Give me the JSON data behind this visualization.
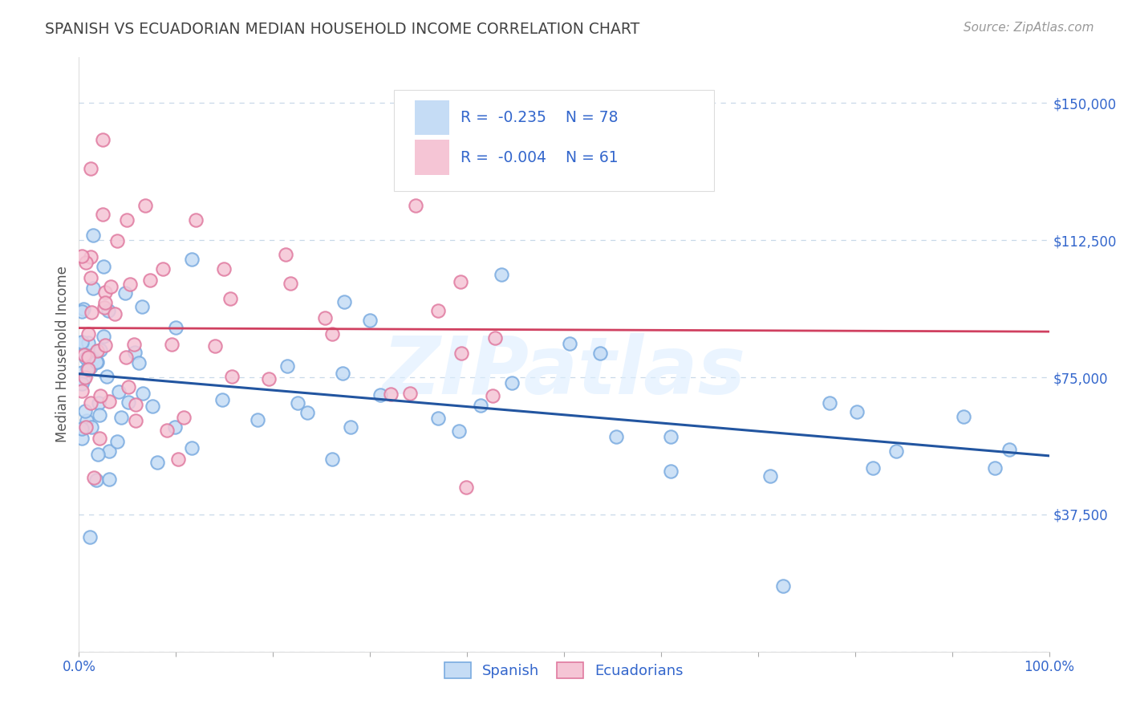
{
  "title": "SPANISH VS ECUADORIAN MEDIAN HOUSEHOLD INCOME CORRELATION CHART",
  "source": "Source: ZipAtlas.com",
  "ylabel": "Median Household Income",
  "xlim": [
    0,
    1.0
  ],
  "ylim": [
    0,
    162500
  ],
  "yticks": [
    0,
    37500,
    75000,
    112500,
    150000
  ],
  "ytick_labels": [
    "",
    "$37,500",
    "$75,000",
    "$112,500",
    "$150,000"
  ],
  "legend_R1": "-0.235",
  "legend_N1": "78",
  "legend_R2": "-0.004",
  "legend_N2": "61",
  "spanish_face_color": "#c5dcf5",
  "spanish_edge_color": "#7aabe0",
  "spanish_line_color": "#2255a0",
  "ecuadorian_face_color": "#f5c5d5",
  "ecuadorian_edge_color": "#e07aa0",
  "ecuadorian_line_color": "#d04060",
  "text_color": "#3366cc",
  "grid_color": "#c8d8e8",
  "background_color": "#ffffff",
  "watermark": "ZIPatlas",
  "title_color": "#444444",
  "source_color": "#999999",
  "legend_text_color": "#3366cc",
  "legend_numbers_color": "#3366cc"
}
